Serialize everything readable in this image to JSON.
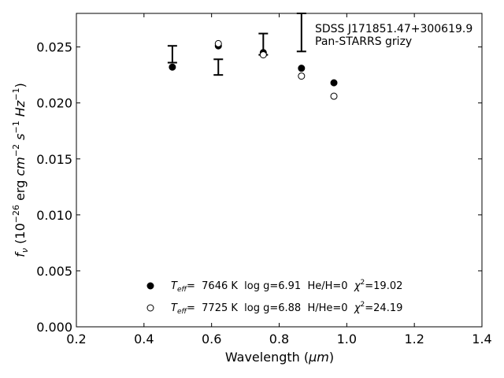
{
  "chart_data": {
    "type": "scatter",
    "xlabel_main": "Wavelength (",
    "xlabel_unit": "μm",
    "xlabel_close": ")",
    "ylabel": {
      "f": "f",
      "nu": "ν",
      "open": " (10",
      "exp1": "−26",
      "erg": " erg ",
      "cm": "cm",
      "exp2": "−2",
      "s": " s",
      "exp3": "−1",
      "hz": " Hz",
      "exp4": "−1",
      "close": ")"
    },
    "xlim": [
      0.2,
      1.4
    ],
    "ylim": [
      0.0,
      0.028
    ],
    "x_ticks": [
      0.2,
      0.4,
      0.6,
      0.8,
      1.0,
      1.2,
      1.4
    ],
    "x_tick_labels": [
      "0.2",
      "0.4",
      "0.6",
      "0.8",
      "1.0",
      "1.2",
      "1.4"
    ],
    "y_ticks": [
      0.0,
      0.005,
      0.01,
      0.015,
      0.02,
      0.025
    ],
    "y_tick_labels": [
      "0.000",
      "0.005",
      "0.010",
      "0.015",
      "0.020",
      "0.025"
    ],
    "grid": false,
    "annotation": {
      "line1": "SDSS J171851.47+300619.9",
      "line2": "Pan-STARRS grizy"
    },
    "observed": {
      "x": [
        0.484,
        0.62,
        0.753,
        0.866,
        0.962
      ],
      "y_low": [
        0.0236,
        0.0225,
        0.0243,
        0.0246,
        null
      ],
      "y_high": [
        0.0251,
        0.0239,
        0.0262,
        0.028,
        null
      ]
    },
    "series": [
      {
        "marker": "filled",
        "x": [
          0.484,
          0.62,
          0.753,
          0.866,
          0.962
        ],
        "y": [
          0.0232,
          0.0251,
          0.0245,
          0.0231,
          0.0218
        ]
      },
      {
        "marker": "open",
        "x": [
          0.62,
          0.753,
          0.866,
          0.962
        ],
        "y": [
          0.0253,
          0.0243,
          0.0224,
          0.0206
        ]
      }
    ],
    "legend": {
      "placement": "lower-center",
      "entries": [
        {
          "T": "T",
          "sub": "eff",
          "text1": "=  7646 K  log g=6.91  He/H=0  ",
          "chi": "χ",
          "sup": "2",
          "text2": "=19.02"
        },
        {
          "T": "T",
          "sub": "eff",
          "text1": "=  7725 K  log g=6.88  H/He=0  ",
          "chi": "χ",
          "sup": "2",
          "text2": "=24.19"
        }
      ]
    }
  }
}
